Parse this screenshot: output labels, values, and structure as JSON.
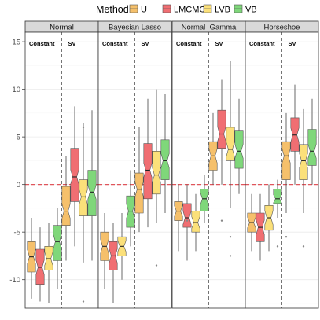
{
  "chart_data": {
    "type": "boxplot",
    "legend": {
      "title": "Method",
      "position": "top",
      "entries": [
        {
          "label": "U",
          "color": "#F5C06B"
        },
        {
          "label": "LMCMC",
          "color": "#F06E72"
        },
        {
          "label": "LVB",
          "color": "#FBE07A"
        },
        {
          "label": "VB",
          "color": "#7FD77A"
        }
      ]
    },
    "ylim": [
      -13,
      16
    ],
    "yticks": [
      -10,
      -5,
      0,
      5,
      10,
      15
    ],
    "reference_line": 0,
    "reference_color": "#E0555B",
    "panels": [
      {
        "title": "Normal",
        "group_labels": [
          "Constant",
          "SV"
        ],
        "groups": [
          [
            {
              "method": "U",
              "whisker_low": -12.0,
              "q1": -9.2,
              "median": -7.6,
              "q3": -6.0,
              "whisker_high": -3.5,
              "outliers": []
            },
            {
              "method": "LMCMC",
              "whisker_low": -12.3,
              "q1": -10.5,
              "median": -8.7,
              "q3": -6.8,
              "whisker_high": -4.5,
              "outliers": []
            },
            {
              "method": "LVB",
              "whisker_low": -12.5,
              "q1": -9.0,
              "median": -7.8,
              "q3": -6.5,
              "whisker_high": -4.0,
              "outliers": []
            },
            {
              "method": "VB",
              "whisker_low": -11.0,
              "q1": -8.0,
              "median": -6.0,
              "q3": -4.3,
              "whisker_high": -2.5,
              "outliers": []
            }
          ],
          [
            {
              "method": "U",
              "whisker_low": -8.0,
              "q1": -4.3,
              "median": -2.8,
              "q3": -0.2,
              "whisker_high": 3.0,
              "outliers": []
            },
            {
              "method": "LMCMC",
              "whisker_low": -6.5,
              "q1": -1.8,
              "median": 0.8,
              "q3": 3.8,
              "whisker_high": 8.2,
              "outliers": []
            },
            {
              "method": "LVB",
              "whisker_low": -8.2,
              "q1": -3.3,
              "median": -1.3,
              "q3": 0.5,
              "whisker_high": 6.5,
              "outliers": [
                6.0,
                -12.3
              ]
            },
            {
              "method": "VB",
              "whisker_low": -8.0,
              "q1": -3.3,
              "median": -0.8,
              "q3": 1.5,
              "whisker_high": 7.8,
              "outliers": []
            }
          ]
        ]
      },
      {
        "title": "Bayesian Lasso",
        "group_labels": [
          "Constant",
          "SV"
        ],
        "groups": [
          [
            {
              "method": "U",
              "whisker_low": -11.0,
              "q1": -8.0,
              "median": -6.5,
              "q3": -5.0,
              "whisker_high": -3.0,
              "outliers": []
            },
            {
              "method": "LMCMC",
              "whisker_low": -12.5,
              "q1": -9.0,
              "median": -7.5,
              "q3": -6.0,
              "whisker_high": -4.0,
              "outliers": []
            },
            {
              "method": "LVB",
              "whisker_low": -10.0,
              "q1": -7.5,
              "median": -6.5,
              "q3": -5.5,
              "whisker_high": -3.0,
              "outliers": []
            },
            {
              "method": "VB",
              "whisker_low": -6.5,
              "q1": -4.5,
              "median": -2.8,
              "q3": -1.2,
              "whisker_high": 1.5,
              "outliers": []
            }
          ],
          [
            {
              "method": "U",
              "whisker_low": -5.0,
              "q1": -3.0,
              "median": -0.5,
              "q3": 1.2,
              "whisker_high": 6.0,
              "outliers": []
            },
            {
              "method": "LMCMC",
              "whisker_low": -4.5,
              "q1": -1.5,
              "median": 1.5,
              "q3": 4.3,
              "whisker_high": 9.0,
              "outliers": []
            },
            {
              "method": "LVB",
              "whisker_low": -4.0,
              "q1": -1.0,
              "median": 1.0,
              "q3": 3.5,
              "whisker_high": 10.0,
              "outliers": [
                -8.5
              ]
            },
            {
              "method": "VB",
              "whisker_low": -3.0,
              "q1": 0.5,
              "median": 2.5,
              "q3": 4.7,
              "whisker_high": 9.5,
              "outliers": []
            }
          ]
        ]
      },
      {
        "title": "Normal–Gamma",
        "group_labels": [
          "Constant",
          "SV"
        ],
        "groups": [
          [
            {
              "method": "U",
              "whisker_low": -7.0,
              "q1": -3.8,
              "median": -2.8,
              "q3": -1.8,
              "whisker_high": 0.0,
              "outliers": []
            },
            {
              "method": "LMCMC",
              "whisker_low": -8.0,
              "q1": -4.5,
              "median": -3.5,
              "q3": -2.0,
              "whisker_high": 0.0,
              "outliers": [
                -3.8
              ]
            },
            {
              "method": "LVB",
              "whisker_low": -7.0,
              "q1": -5.0,
              "median": -4.0,
              "q3": -2.8,
              "whisker_high": -1.0,
              "outliers": []
            },
            {
              "method": "VB",
              "whisker_low": -4.0,
              "q1": -2.8,
              "median": -1.5,
              "q3": -0.5,
              "whisker_high": 1.0,
              "outliers": []
            }
          ],
          [
            {
              "method": "U",
              "whisker_low": 0.0,
              "q1": 1.5,
              "median": 3.0,
              "q3": 4.5,
              "whisker_high": 7.5,
              "outliers": []
            },
            {
              "method": "LMCMC",
              "whisker_low": 0.0,
              "q1": 3.8,
              "median": 5.3,
              "q3": 7.8,
              "whisker_high": 11.0,
              "outliers": [
                -3.8
              ]
            },
            {
              "method": "LVB",
              "whisker_low": -2.5,
              "q1": 2.5,
              "median": 3.7,
              "q3": 6.0,
              "whisker_high": 13.0,
              "outliers": [
                -5.5,
                -7.5
              ]
            },
            {
              "method": "VB",
              "whisker_low": -1.0,
              "q1": 1.7,
              "median": 3.5,
              "q3": 5.7,
              "whisker_high": 9.0,
              "outliers": []
            }
          ]
        ]
      },
      {
        "title": "Horseshoe",
        "group_labels": [
          "Constant",
          "SV"
        ],
        "groups": [
          [
            {
              "method": "U",
              "whisker_low": -7.0,
              "q1": -5.0,
              "median": -4.0,
              "q3": -3.0,
              "whisker_high": -1.0,
              "outliers": []
            },
            {
              "method": "LMCMC",
              "whisker_low": -8.0,
              "q1": -6.0,
              "median": -4.5,
              "q3": -3.0,
              "whisker_high": -1.0,
              "outliers": []
            },
            {
              "method": "LVB",
              "whisker_low": -7.0,
              "q1": -4.8,
              "median": -3.5,
              "q3": -2.2,
              "whisker_high": 0.0,
              "outliers": []
            },
            {
              "method": "VB",
              "whisker_low": -3.5,
              "q1": -2.0,
              "median": -1.5,
              "q3": -0.5,
              "whisker_high": 0.5,
              "outliers": [
                -6.5
              ]
            }
          ],
          [
            {
              "method": "U",
              "whisker_low": -3.0,
              "q1": 0.5,
              "median": 3.0,
              "q3": 4.5,
              "whisker_high": 7.5,
              "outliers": [
                -5.5
              ]
            },
            {
              "method": "LMCMC",
              "whisker_low": 0.0,
              "q1": 3.5,
              "median": 5.2,
              "q3": 7.0,
              "whisker_high": 10.5,
              "outliers": []
            },
            {
              "method": "LVB",
              "whisker_low": -3.0,
              "q1": 0.5,
              "median": 2.5,
              "q3": 4.2,
              "whisker_high": 8.0,
              "outliers": [
                -6.5
              ]
            },
            {
              "method": "VB",
              "whisker_low": 0.0,
              "q1": 2.0,
              "median": 3.5,
              "q3": 5.8,
              "whisker_high": 9.0,
              "outliers": []
            }
          ]
        ]
      }
    ]
  }
}
